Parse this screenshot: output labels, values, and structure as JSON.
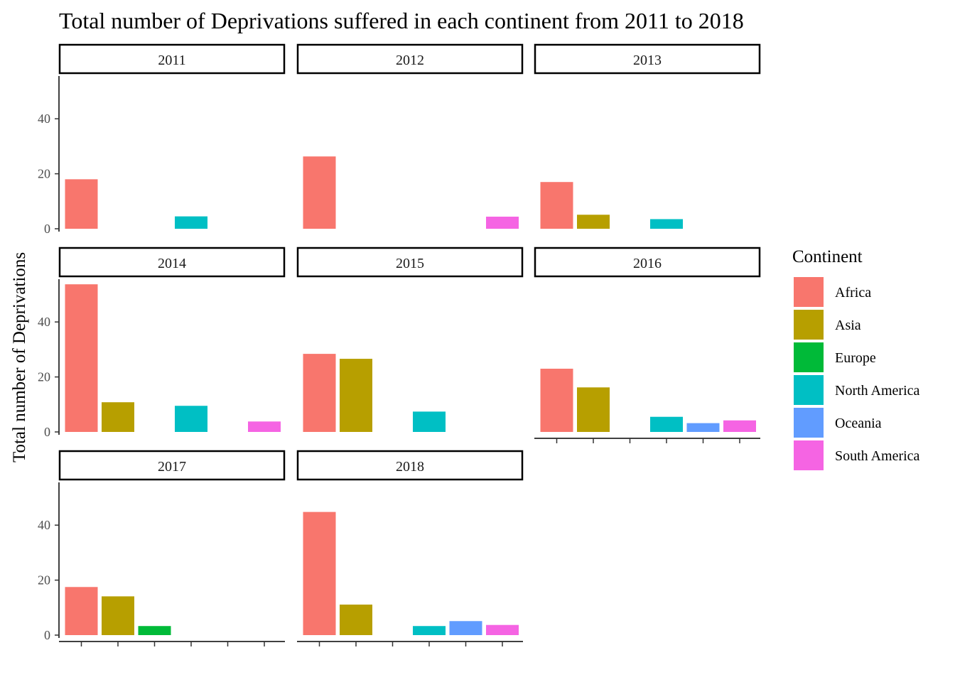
{
  "chart_data": {
    "type": "bar",
    "title": "Total number of Deprivations suffered in each continent from 2011 to 2018",
    "xlabel": "",
    "ylabel": "Total number of Deprivations",
    "ylim": [
      0,
      55
    ],
    "yticks": [
      0,
      20,
      40
    ],
    "grid": false,
    "legend_title": "Continent",
    "legend_position": "right",
    "categories": [
      "Africa",
      "Asia",
      "Europe",
      "North America",
      "Oceania",
      "South America"
    ],
    "colors": {
      "Africa": "#F8766D",
      "Asia": "#B79F00",
      "Europe": "#00BA38",
      "North America": "#00BFC4",
      "Oceania": "#619CFF",
      "South America": "#F564E3"
    },
    "panels": [
      {
        "label": "2011",
        "values": {
          "Africa": 18,
          "North America": 4.5
        }
      },
      {
        "label": "2012",
        "values": {
          "Africa": 26.3,
          "South America": 4.4
        }
      },
      {
        "label": "2013",
        "values": {
          "Africa": 17,
          "Asia": 5.1,
          "North America": 3.5
        }
      },
      {
        "label": "2014",
        "values": {
          "Africa": 53.7,
          "Asia": 10.8,
          "North America": 9.5,
          "South America": 3.8
        }
      },
      {
        "label": "2015",
        "values": {
          "Africa": 28.4,
          "Asia": 26.6,
          "North America": 7.4
        }
      },
      {
        "label": "2016",
        "values": {
          "Africa": 23,
          "Asia": 16.2,
          "North America": 5.5,
          "Oceania": 3.2,
          "South America": 4.2
        }
      },
      {
        "label": "2017",
        "values": {
          "Africa": 17.5,
          "Asia": 14.1,
          "Europe": 3.3
        }
      },
      {
        "label": "2018",
        "values": {
          "Africa": 44.8,
          "Asia": 11.1,
          "North America": 3.3,
          "Oceania": 5.1,
          "South America": 3.7
        }
      }
    ]
  }
}
